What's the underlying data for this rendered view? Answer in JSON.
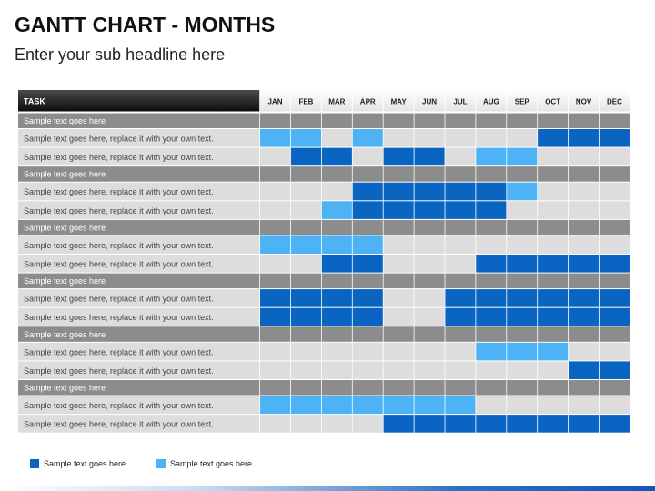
{
  "header": {
    "title": "GANTT CHART - MONTHS",
    "subtitle": "Enter your sub headline here"
  },
  "colors": {
    "dark_blue": "#0a64c2",
    "light_blue": "#4db3f4",
    "empty_cell": "#dddddd",
    "group_row": "#8c8c8c"
  },
  "chart_data": {
    "type": "table",
    "task_header": "TASK",
    "months": [
      "JAN",
      "FEB",
      "MAR",
      "APR",
      "MAY",
      "JUN",
      "JUL",
      "AUG",
      "SEP",
      "OCT",
      "NOV",
      "DEC"
    ],
    "groups": [
      {
        "name": "Sample text goes here",
        "tasks": [
          {
            "label": "Sample text goes here, replace it with your own text.",
            "cells": [
              2,
              2,
              0,
              2,
              0,
              0,
              0,
              0,
              0,
              1,
              1,
              1
            ]
          },
          {
            "label": "Sample text goes here, replace it with your own text.",
            "cells": [
              0,
              1,
              1,
              0,
              1,
              1,
              0,
              2,
              2,
              0,
              0,
              0
            ]
          }
        ]
      },
      {
        "name": "Sample text goes here",
        "tasks": [
          {
            "label": "Sample text goes here, replace it with your own text.",
            "cells": [
              0,
              0,
              0,
              1,
              1,
              1,
              1,
              1,
              2,
              0,
              0,
              0
            ]
          },
          {
            "label": "Sample text goes here, replace it with your own text.",
            "cells": [
              0,
              0,
              2,
              1,
              1,
              1,
              1,
              1,
              0,
              0,
              0,
              0
            ]
          }
        ]
      },
      {
        "name": "Sample text goes here",
        "tasks": [
          {
            "label": "Sample text goes here, replace it with your own text.",
            "cells": [
              2,
              2,
              2,
              2,
              0,
              0,
              0,
              0,
              0,
              0,
              0,
              0
            ]
          },
          {
            "label": "Sample text goes here, replace it with your own text.",
            "cells": [
              0,
              0,
              1,
              1,
              0,
              0,
              0,
              1,
              1,
              1,
              1,
              1
            ]
          }
        ]
      },
      {
        "name": "Sample text goes here",
        "tasks": [
          {
            "label": "Sample text goes here, replace it with your own text.",
            "cells": [
              1,
              1,
              1,
              1,
              0,
              0,
              1,
              1,
              1,
              1,
              1,
              1
            ]
          },
          {
            "label": "Sample text goes here, replace it with your own text.",
            "cells": [
              1,
              1,
              1,
              1,
              0,
              0,
              1,
              1,
              1,
              1,
              1,
              1
            ]
          }
        ]
      },
      {
        "name": "Sample text goes here",
        "tasks": [
          {
            "label": "Sample text goes here, replace it with your own text.",
            "cells": [
              0,
              0,
              0,
              0,
              0,
              0,
              0,
              2,
              2,
              2,
              0,
              0
            ]
          },
          {
            "label": "Sample text goes here, replace it with your own text.",
            "cells": [
              0,
              0,
              0,
              0,
              0,
              0,
              0,
              0,
              0,
              0,
              1,
              1
            ]
          }
        ]
      },
      {
        "name": "Sample text goes here",
        "tasks": [
          {
            "label": "Sample text goes here, replace it with your own text.",
            "cells": [
              2,
              2,
              2,
              2,
              2,
              2,
              2,
              0,
              0,
              0,
              0,
              0
            ]
          },
          {
            "label": "Sample text goes here, replace it with your own text.",
            "cells": [
              0,
              0,
              0,
              0,
              1,
              1,
              1,
              1,
              1,
              1,
              1,
              1
            ]
          }
        ]
      }
    ],
    "legend": [
      {
        "label": "Sample text goes here",
        "color": "#0a64c2"
      },
      {
        "label": "Sample text goes here",
        "color": "#4db3f4"
      }
    ]
  }
}
